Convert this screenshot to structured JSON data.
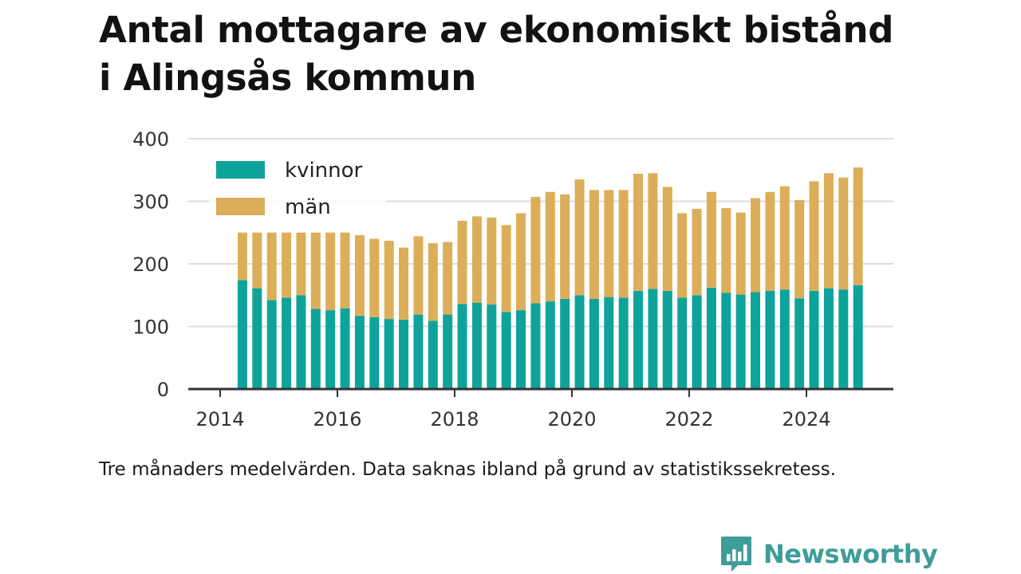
{
  "title_lines": [
    "Antal mottagare av ekonomiskt bistånd",
    "i Alingsås kommun"
  ],
  "footnote": "Tre månaders medelvärden. Data saknas ibland på grund av statistikssekretess.",
  "logo": {
    "text": "Newsworthy",
    "icon": "newsworthy-logo-icon",
    "color": "#3f9d99"
  },
  "colors": {
    "kvinnor": "#0ea39a",
    "man": "#dcae5a",
    "grid": "#dddddd",
    "axis": "#333333"
  },
  "chart_data": {
    "type": "bar",
    "stacked": true,
    "title": "Antal mottagare av ekonomiskt bistånd i Alingsås kommun",
    "xlabel": "",
    "ylabel": "",
    "ylim": [
      0,
      400
    ],
    "y_ticks": [
      0,
      100,
      200,
      300,
      400
    ],
    "y_tick_labels": [
      "0",
      "100",
      "200",
      "300",
      "400"
    ],
    "x_ticks": [
      2014,
      2016,
      2018,
      2020,
      2022,
      2024
    ],
    "x_tick_labels": [
      "2014",
      "2016",
      "2018",
      "2020",
      "2022",
      "2024"
    ],
    "xlim": [
      2013.6,
      2025.6
    ],
    "grid": true,
    "legend_position": "top-left",
    "x": [
      2014.38,
      2014.63,
      2014.88,
      2015.13,
      2015.38,
      2015.63,
      2015.88,
      2016.13,
      2016.38,
      2016.63,
      2016.88,
      2017.13,
      2017.38,
      2017.63,
      2017.88,
      2018.13,
      2018.38,
      2018.63,
      2018.88,
      2019.13,
      2019.38,
      2019.63,
      2019.88,
      2020.13,
      2020.38,
      2020.63,
      2020.88,
      2021.13,
      2021.38,
      2021.63,
      2021.88,
      2022.13,
      2022.38,
      2022.63,
      2022.88,
      2023.13,
      2023.38,
      2023.63,
      2023.88,
      2024.13,
      2024.38,
      2024.63,
      2024.88
    ],
    "series": [
      {
        "name": "kvinnor",
        "values": [
          174,
          161,
          142,
          146,
          150,
          128,
          126,
          129,
          117,
          115,
          112,
          111,
          119,
          109,
          119,
          136,
          138,
          135,
          123,
          126,
          137,
          140,
          144,
          150,
          144,
          147,
          146,
          157,
          160,
          157,
          146,
          150,
          162,
          154,
          151,
          155,
          157,
          159,
          145,
          157,
          161,
          159,
          166
        ]
      },
      {
        "name": "män",
        "values": [
          76,
          89,
          108,
          104,
          100,
          122,
          124,
          121,
          129,
          125,
          125,
          115,
          125,
          124,
          116,
          133,
          138,
          139,
          139,
          155,
          170,
          175,
          167,
          185,
          174,
          171,
          172,
          187,
          185,
          166,
          135,
          138,
          153,
          135,
          131,
          150,
          158,
          165,
          157,
          175,
          184,
          179,
          188
        ]
      }
    ]
  }
}
